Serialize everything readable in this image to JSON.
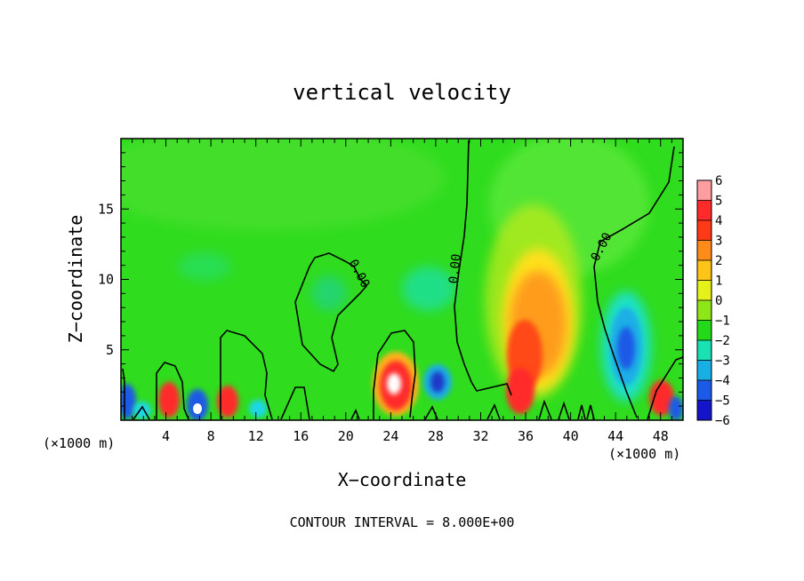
{
  "chart_data": {
    "type": "heatmap",
    "title": "vertical velocity",
    "xlabel": "X−coordinate",
    "ylabel": "Z−coordinate",
    "x_unit": "(×1000 m)",
    "footer": "CONTOUR INTERVAL = 8.000E+00",
    "xlim": [
      0,
      50
    ],
    "ylim": [
      0,
      20
    ],
    "x_ticks": [
      4,
      8,
      12,
      16,
      20,
      24,
      28,
      32,
      36,
      40,
      44,
      48
    ],
    "y_ticks": [
      5,
      10,
      15
    ],
    "contour_level": "0.00",
    "contour_label_text": "0.00",
    "colorbar": {
      "levels": [
        6,
        5,
        4,
        3,
        2,
        1,
        0,
        -1,
        -2,
        -3,
        -4,
        -5,
        -6
      ],
      "colors": [
        "#ff9da0",
        "#ff2a2a",
        "#ff3a14",
        "#ff8c1a",
        "#ffc41a",
        "#e6f01a",
        "#8ee61a",
        "#24d81a",
        "#1ae0b4",
        "#1aaee6",
        "#1a5ae6",
        "#1414c8",
        "#8a1aa8"
      ]
    },
    "features": [
      {
        "kind": "updraft",
        "x": 37,
        "z": 7,
        "peak": 3
      },
      {
        "kind": "updraft",
        "x": 24.2,
        "z": 2.5,
        "peak": 6
      },
      {
        "kind": "updraft",
        "x": 5,
        "z": 1.3,
        "peak": 4
      },
      {
        "kind": "updraft",
        "x": 9.5,
        "z": 1.2,
        "peak": 4
      },
      {
        "kind": "updraft",
        "x": 48,
        "z": 1.3,
        "peak": 4
      },
      {
        "kind": "updraft",
        "x": 35.5,
        "z": 2.2,
        "peak": 4
      },
      {
        "kind": "downdraft",
        "x": 44.5,
        "z": 5,
        "peak": -3
      },
      {
        "kind": "downdraft",
        "x": 28.2,
        "z": 2.5,
        "peak": -3
      },
      {
        "kind": "downdraft",
        "x": 7,
        "z": 1.0,
        "peak": -5
      },
      {
        "kind": "downdraft",
        "x": 0.5,
        "z": 1.0,
        "peak": -4
      },
      {
        "kind": "downdraft",
        "x": 12,
        "z": 1.0,
        "peak": -2
      }
    ]
  }
}
